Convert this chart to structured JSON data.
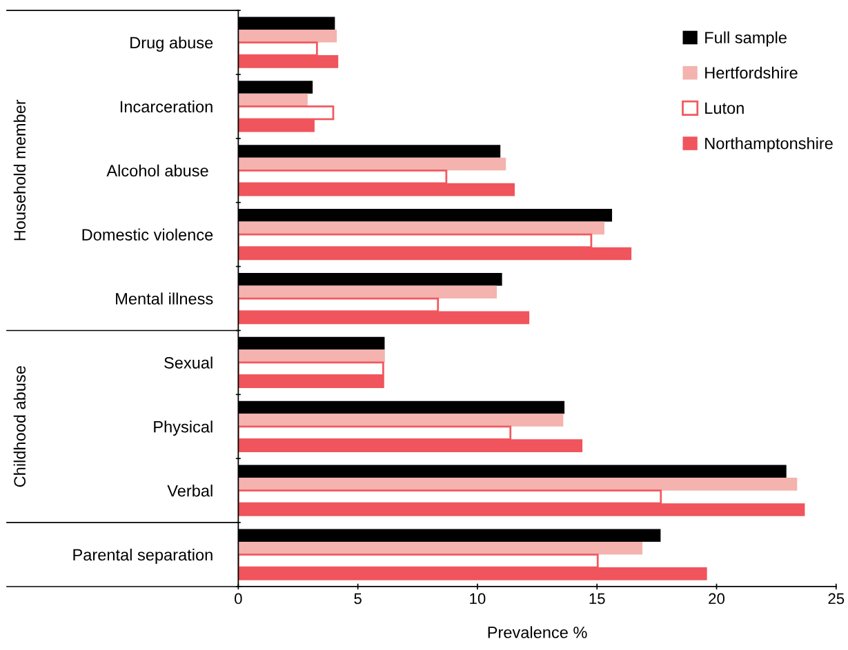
{
  "chart_data": {
    "type": "bar",
    "orientation": "horizontal",
    "xlabel": "Prevalence %",
    "categories": [
      "Drug abuse",
      "Incarceration",
      "Alcohol abuse ",
      "Domestic violence",
      "Mental illness",
      "Sexual",
      "Physical",
      "Verbal",
      "Parental separation"
    ],
    "series": [
      {
        "name": "Full sample",
        "color": "#000000",
        "values": [
          4.04,
          3.11,
          10.96,
          15.63,
          11.03,
          6.12,
          13.64,
          22.92,
          17.66
        ]
      },
      {
        "name": "Hertfordshire",
        "color": "#f4b3ae",
        "values": [
          4.12,
          2.9,
          11.19,
          15.31,
          10.81,
          6.13,
          13.59,
          23.37,
          16.9
        ]
      },
      {
        "name": "Luton",
        "color": "#f05a5f",
        "line_style": "solid",
        "values": [
          3.29,
          3.97,
          8.7,
          14.76,
          8.35,
          6.06,
          11.38,
          17.67,
          15.03
        ]
      },
      {
        "name": "Northamptonshire",
        "color": "#f0545c",
        "values": [
          4.18,
          3.19,
          11.56,
          16.44,
          12.17,
          6.1,
          14.39,
          23.69,
          19.6
        ]
      }
    ],
    "xlim": [
      0,
      25
    ],
    "xticks": [
      0,
      5,
      10,
      15,
      20,
      25
    ],
    "annotations": [
      "Household member",
      "Childhood abuse"
    ],
    "legend": "top right",
    "grid": false
  }
}
